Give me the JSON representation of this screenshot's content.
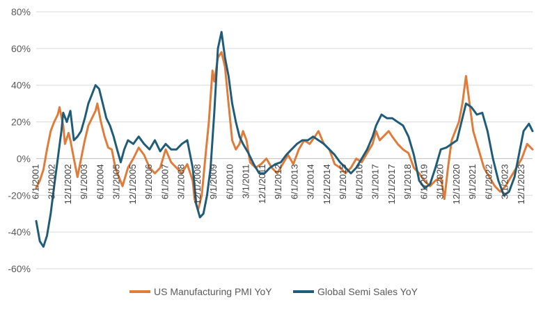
{
  "chart_data": {
    "type": "line",
    "title": "",
    "xlabel": "",
    "ylabel": "",
    "ylim": [
      -60,
      80
    ],
    "y_ticks": [
      -60,
      -40,
      -20,
      0,
      20,
      40,
      60,
      80
    ],
    "y_tick_labels": [
      "-60%",
      "-40%",
      "-20%",
      "0%",
      "20%",
      "40%",
      "60%",
      "80%"
    ],
    "y_unit": "%",
    "grid": "horizontal",
    "legend_position": "bottom",
    "x_start": "2001-06-01",
    "x_end": "2024-06-01",
    "x_tick_labels": [
      "6/1/2001",
      "3/1/2002",
      "12/1/2002",
      "9/1/2003",
      "6/1/2004",
      "3/1/2005",
      "12/1/2005",
      "9/1/2006",
      "6/1/2007",
      "3/1/2008",
      "12/1/2008",
      "9/1/2009",
      "6/1/2010",
      "3/1/2011",
      "12/1/2011",
      "9/1/2012",
      "6/1/2013",
      "3/1/2014",
      "12/1/2014",
      "9/1/2015",
      "6/1/2016",
      "3/1/2017",
      "12/1/2017",
      "9/1/2018",
      "6/1/2019",
      "3/1/2020",
      "12/1/2020",
      "9/1/2021",
      "6/1/2022",
      "3/1/2023",
      "12/1/2023"
    ],
    "series": [
      {
        "name": "US Manufacturing PMI YoY",
        "color": "#E07B39",
        "points": [
          [
            "2001-06-01",
            -16
          ],
          [
            "2001-08-01",
            -12
          ],
          [
            "2001-10-01",
            -6
          ],
          [
            "2001-12-01",
            5
          ],
          [
            "2002-02-01",
            15
          ],
          [
            "2002-04-01",
            20
          ],
          [
            "2002-06-01",
            24
          ],
          [
            "2002-07-01",
            28
          ],
          [
            "2002-09-01",
            18
          ],
          [
            "2002-10-01",
            8
          ],
          [
            "2002-12-01",
            14
          ],
          [
            "2003-01-01",
            10
          ],
          [
            "2003-03-01",
            0
          ],
          [
            "2003-05-01",
            -10
          ],
          [
            "2003-07-01",
            0
          ],
          [
            "2003-09-01",
            10
          ],
          [
            "2003-11-01",
            18
          ],
          [
            "2004-01-01",
            22
          ],
          [
            "2004-03-01",
            26
          ],
          [
            "2004-04-01",
            30
          ],
          [
            "2004-06-01",
            20
          ],
          [
            "2004-08-01",
            12
          ],
          [
            "2004-10-01",
            6
          ],
          [
            "2004-12-01",
            5
          ],
          [
            "2005-02-01",
            -5
          ],
          [
            "2005-04-01",
            -10
          ],
          [
            "2005-06-01",
            -15
          ],
          [
            "2005-09-01",
            -5
          ],
          [
            "2005-12-01",
            0
          ],
          [
            "2006-03-01",
            6
          ],
          [
            "2006-06-01",
            2
          ],
          [
            "2006-09-01",
            -5
          ],
          [
            "2006-12-01",
            -8
          ],
          [
            "2007-03-01",
            -5
          ],
          [
            "2007-06-01",
            5
          ],
          [
            "2007-09-01",
            -2
          ],
          [
            "2007-12-01",
            -5
          ],
          [
            "2008-03-01",
            -8
          ],
          [
            "2008-06-01",
            -3
          ],
          [
            "2008-09-01",
            -12
          ],
          [
            "2008-10-01",
            -22
          ],
          [
            "2008-12-01",
            -28
          ],
          [
            "2009-02-01",
            -20
          ],
          [
            "2009-04-01",
            0
          ],
          [
            "2009-06-01",
            20
          ],
          [
            "2009-08-01",
            48
          ],
          [
            "2009-09-01",
            42
          ],
          [
            "2009-11-01",
            55
          ],
          [
            "2010-01-01",
            58
          ],
          [
            "2010-03-01",
            50
          ],
          [
            "2010-05-01",
            30
          ],
          [
            "2010-07-01",
            10
          ],
          [
            "2010-09-01",
            5
          ],
          [
            "2010-11-01",
            8
          ],
          [
            "2011-01-01",
            15
          ],
          [
            "2011-03-01",
            10
          ],
          [
            "2011-05-01",
            -2
          ],
          [
            "2011-08-01",
            -5
          ],
          [
            "2011-11-01",
            -3
          ],
          [
            "2012-02-01",
            0
          ],
          [
            "2012-05-01",
            -5
          ],
          [
            "2012-08-01",
            -8
          ],
          [
            "2012-11-01",
            -3
          ],
          [
            "2013-02-01",
            2
          ],
          [
            "2013-05-01",
            -3
          ],
          [
            "2013-08-01",
            5
          ],
          [
            "2013-11-01",
            10
          ],
          [
            "2014-02-01",
            8
          ],
          [
            "2014-05-01",
            12
          ],
          [
            "2014-07-01",
            15
          ],
          [
            "2014-10-01",
            8
          ],
          [
            "2015-01-01",
            5
          ],
          [
            "2015-04-01",
            -3
          ],
          [
            "2015-07-01",
            -5
          ],
          [
            "2015-10-01",
            -8
          ],
          [
            "2016-01-01",
            -5
          ],
          [
            "2016-04-01",
            0
          ],
          [
            "2016-07-01",
            -2
          ],
          [
            "2016-10-01",
            3
          ],
          [
            "2017-01-01",
            8
          ],
          [
            "2017-03-01",
            15
          ],
          [
            "2017-05-01",
            10
          ],
          [
            "2017-08-01",
            13
          ],
          [
            "2017-10-01",
            15
          ],
          [
            "2017-12-01",
            12
          ],
          [
            "2018-03-01",
            8
          ],
          [
            "2018-06-01",
            5
          ],
          [
            "2018-09-01",
            3
          ],
          [
            "2018-12-01",
            -5
          ],
          [
            "2019-03-01",
            -8
          ],
          [
            "2019-06-01",
            -12
          ],
          [
            "2019-09-01",
            -15
          ],
          [
            "2019-12-01",
            -12
          ],
          [
            "2020-03-01",
            -10
          ],
          [
            "2020-05-01",
            -22
          ],
          [
            "2020-07-01",
            -5
          ],
          [
            "2020-09-01",
            10
          ],
          [
            "2020-11-01",
            15
          ],
          [
            "2021-01-01",
            20
          ],
          [
            "2021-03-01",
            30
          ],
          [
            "2021-05-01",
            45
          ],
          [
            "2021-07-01",
            30
          ],
          [
            "2021-09-01",
            15
          ],
          [
            "2021-12-01",
            5
          ],
          [
            "2022-03-01",
            -5
          ],
          [
            "2022-06-01",
            -10
          ],
          [
            "2022-09-01",
            -15
          ],
          [
            "2022-12-01",
            -18
          ],
          [
            "2023-03-01",
            -15
          ],
          [
            "2023-06-01",
            -10
          ],
          [
            "2023-09-01",
            -5
          ],
          [
            "2023-12-01",
            0
          ],
          [
            "2024-03-01",
            8
          ],
          [
            "2024-06-01",
            5
          ]
        ]
      },
      {
        "name": "Global Semi Sales YoY",
        "color": "#1F5C7A",
        "points": [
          [
            "2001-06-01",
            -34
          ],
          [
            "2001-08-01",
            -45
          ],
          [
            "2001-10-01",
            -48
          ],
          [
            "2001-12-01",
            -42
          ],
          [
            "2002-02-01",
            -30
          ],
          [
            "2002-04-01",
            -15
          ],
          [
            "2002-06-01",
            0
          ],
          [
            "2002-08-01",
            15
          ],
          [
            "2002-09-01",
            25
          ],
          [
            "2002-11-01",
            20
          ],
          [
            "2003-01-01",
            26
          ],
          [
            "2003-03-01",
            10
          ],
          [
            "2003-05-01",
            12
          ],
          [
            "2003-07-01",
            15
          ],
          [
            "2003-09-01",
            22
          ],
          [
            "2003-11-01",
            30
          ],
          [
            "2004-01-01",
            35
          ],
          [
            "2004-03-01",
            40
          ],
          [
            "2004-05-01",
            38
          ],
          [
            "2004-07-01",
            30
          ],
          [
            "2004-09-01",
            22
          ],
          [
            "2004-11-01",
            18
          ],
          [
            "2005-01-01",
            12
          ],
          [
            "2005-03-01",
            5
          ],
          [
            "2005-05-01",
            -2
          ],
          [
            "2005-07-01",
            5
          ],
          [
            "2005-09-01",
            10
          ],
          [
            "2005-12-01",
            8
          ],
          [
            "2006-03-01",
            12
          ],
          [
            "2006-06-01",
            8
          ],
          [
            "2006-09-01",
            5
          ],
          [
            "2006-12-01",
            10
          ],
          [
            "2007-03-01",
            4
          ],
          [
            "2007-06-01",
            8
          ],
          [
            "2007-09-01",
            5
          ],
          [
            "2007-12-01",
            5
          ],
          [
            "2008-03-01",
            8
          ],
          [
            "2008-06-01",
            10
          ],
          [
            "2008-09-01",
            -5
          ],
          [
            "2008-11-01",
            -25
          ],
          [
            "2009-01-01",
            -32
          ],
          [
            "2009-03-01",
            -30
          ],
          [
            "2009-05-01",
            -20
          ],
          [
            "2009-07-01",
            -5
          ],
          [
            "2009-09-01",
            25
          ],
          [
            "2009-11-01",
            60
          ],
          [
            "2010-01-01",
            69
          ],
          [
            "2010-03-01",
            55
          ],
          [
            "2010-05-01",
            45
          ],
          [
            "2010-07-01",
            30
          ],
          [
            "2010-09-01",
            20
          ],
          [
            "2010-11-01",
            12
          ],
          [
            "2011-01-01",
            8
          ],
          [
            "2011-04-01",
            3
          ],
          [
            "2011-07-01",
            -3
          ],
          [
            "2011-10-01",
            -8
          ],
          [
            "2012-01-01",
            -8
          ],
          [
            "2012-04-01",
            -5
          ],
          [
            "2012-07-01",
            -3
          ],
          [
            "2012-10-01",
            -2
          ],
          [
            "2013-01-01",
            2
          ],
          [
            "2013-04-01",
            5
          ],
          [
            "2013-07-01",
            8
          ],
          [
            "2013-10-01",
            10
          ],
          [
            "2014-01-01",
            10
          ],
          [
            "2014-04-01",
            12
          ],
          [
            "2014-07-01",
            10
          ],
          [
            "2014-10-01",
            8
          ],
          [
            "2015-01-01",
            5
          ],
          [
            "2015-04-01",
            2
          ],
          [
            "2015-07-01",
            -2
          ],
          [
            "2015-10-01",
            -5
          ],
          [
            "2016-01-01",
            -8
          ],
          [
            "2016-04-01",
            -5
          ],
          [
            "2016-07-01",
            0
          ],
          [
            "2016-10-01",
            5
          ],
          [
            "2017-01-01",
            12
          ],
          [
            "2017-03-01",
            18
          ],
          [
            "2017-06-01",
            24
          ],
          [
            "2017-09-01",
            22
          ],
          [
            "2017-12-01",
            22
          ],
          [
            "2018-03-01",
            20
          ],
          [
            "2018-06-01",
            18
          ],
          [
            "2018-09-01",
            12
          ],
          [
            "2018-12-01",
            2
          ],
          [
            "2019-03-01",
            -12
          ],
          [
            "2019-06-01",
            -16
          ],
          [
            "2019-09-01",
            -14
          ],
          [
            "2019-12-01",
            -5
          ],
          [
            "2020-03-01",
            5
          ],
          [
            "2020-06-01",
            6
          ],
          [
            "2020-09-01",
            8
          ],
          [
            "2020-12-01",
            10
          ],
          [
            "2021-03-01",
            22
          ],
          [
            "2021-05-01",
            30
          ],
          [
            "2021-08-01",
            28
          ],
          [
            "2021-11-01",
            24
          ],
          [
            "2022-02-01",
            25
          ],
          [
            "2022-05-01",
            15
          ],
          [
            "2022-08-01",
            0
          ],
          [
            "2022-11-01",
            -12
          ],
          [
            "2023-02-01",
            -20
          ],
          [
            "2023-05-01",
            -18
          ],
          [
            "2023-08-01",
            -10
          ],
          [
            "2023-11-01",
            5
          ],
          [
            "2024-01-01",
            15
          ],
          [
            "2024-04-01",
            19
          ],
          [
            "2024-06-01",
            15
          ]
        ]
      }
    ]
  }
}
